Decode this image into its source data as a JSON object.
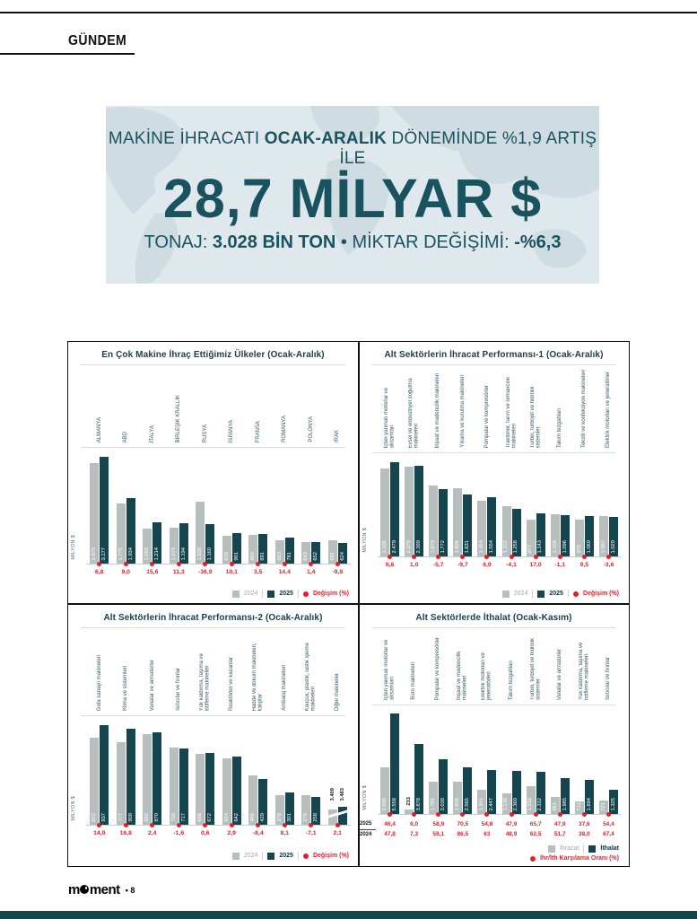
{
  "page": {
    "section_label": "GÜNDEM",
    "footer": {
      "logo_m": "m",
      "logo_rest": "ment",
      "separator": "•",
      "page_number": "8"
    }
  },
  "banner": {
    "intro": {
      "pre": "MAKİNE İHRACATI ",
      "bold": "OCAK-ARALIK",
      "post": " DÖNEMİNDE %1,9 ARTIŞ İLE"
    },
    "headline": "28,7 MİLYAR $",
    "stats": {
      "label1": "TONAJ: ",
      "value1": "3.028 BİN TON",
      "mid": " • MİKTAR DEĞİŞİMİ: ",
      "value2": "-%6,3"
    }
  },
  "colors": {
    "teal_bar": "#15454e",
    "gray_bar": "#b6bebe",
    "red": "#e01f2d",
    "banner_bg": "#dfe8ec",
    "banner_text": "#1a5360",
    "title_text": "#1c3c4c",
    "bottom_strip": "#14454e"
  },
  "chart_data": [
    {
      "type": "bar",
      "title": "En Çok Makine İhraç Ettiğimiz Ülkeler (Ocak-Aralık)",
      "ylabel": "MİLYON $",
      "ymax": 3300,
      "legend": [
        "2024",
        "2025"
      ],
      "change_legend": "Değişim (%)",
      "categories": [
        "ALMANYA",
        "ABD",
        "İTALYA",
        "BİRLEŞİK KRALLIK",
        "RUSYA",
        "İSPANYA",
        "FRANSA",
        "ROMANYA",
        "POLONYA",
        "IRAK"
      ],
      "series": [
        {
          "name": "2024",
          "values": [
            2975,
            1775,
            1050,
            1073,
            1838,
            818,
            860,
            683,
            643,
            691
          ],
          "labels": [
            "2.975",
            "1.775",
            "1.050",
            "1.073",
            "1.838",
            "818",
            "860",
            "683",
            "643",
            "691"
          ]
        },
        {
          "name": "2025",
          "values": [
            3177,
            1934,
            1214,
            1194,
            1160,
            901,
            891,
            781,
            652,
            624
          ],
          "labels": [
            "3.177",
            "1.934",
            "1.214",
            "1.194",
            "1.160",
            "901",
            "891",
            "781",
            "652",
            "624"
          ]
        }
      ],
      "change": [
        "6,8",
        "9,0",
        "15,6",
        "11,3",
        "-36,9",
        "10,1",
        "3,5",
        "14,4",
        "1,4",
        "-9,8"
      ]
    },
    {
      "type": "bar",
      "title": "Alt Sektörlerin İhracat Performansı-1 (Ocak-Aralık)",
      "ylabel": "MİLYON $",
      "ymax": 2600,
      "legend": [
        "2024",
        "2025"
      ],
      "change_legend": "Değişim (%)",
      "categories": [
        "İçten yanmalı motorlar ve aksamları",
        "Evsel ve endüstriyel soğutma makineleri",
        "İnşaat ve madencilik makineleri",
        "Yıkama ve kurutma makineleri",
        "Pompalar ve kompresörler",
        "Traktörler, tarım ve ormancılık makineleri",
        "Türbin, turbojet ve hidrolik sistemler",
        "Takım tezgahları",
        "Tekstil ve konfeksiyon makineleri",
        "Elektrik motorları ve jeneratörler"
      ],
      "series": [
        {
          "name": "2024",
          "values": [
            2326,
            2375,
            1879,
            1806,
            1454,
            1312,
            977,
            1108,
            976,
            1067
          ],
          "labels": [
            "2.326",
            "2.375",
            "1.879",
            "1.806",
            "1.454",
            "1.312",
            "977",
            "1.108",
            "976",
            "1.067"
          ]
        },
        {
          "name": "2025",
          "values": [
            2479,
            2399,
            1772,
            1631,
            1554,
            1258,
            1143,
            1096,
            1069,
            1029
          ],
          "labels": [
            "2.479",
            "2.399",
            "1.772",
            "1.631",
            "1.554",
            "1.258",
            "1.143",
            "1.096",
            "1.069",
            "1.029"
          ]
        }
      ],
      "change": [
        "6,6",
        "1,0",
        "-5,7",
        "-9,7",
        "6,9",
        "-4,1",
        "17,0",
        "-1,1",
        "9,5",
        "-3,6"
      ]
    },
    {
      "type": "bar",
      "title": "Alt Sektörlerin İhracat Performansı-2 (Ocak-Aralık)",
      "ylabel": "MİLYON $",
      "ymax": 980,
      "broken_index": 9,
      "legend": [
        "2024",
        "2025"
      ],
      "change_legend": "Değişim (%)",
      "categories": [
        "Gıda sanayii makineleri",
        "Klima ve sistemleri",
        "Vanalar ve armatürler",
        "Isıtıcılar ve fırınlar",
        "Yük kaldırma, taşıma ve istifleme makineleri",
        "Reaktörler ve kazanlar",
        "Hadde ve döküm makineleri, kalıplar",
        "Ambalaj makineleri",
        "Kauçuk, plastik, lastik işleme makineleri",
        "Diğer makineler"
      ],
      "series": [
        {
          "name": "2024",
          "values": [
            822,
            777,
            850,
            729,
            668,
            624,
            468,
            278,
            278,
            3409
          ],
          "labels": [
            "822",
            "777",
            "850",
            "729",
            "668",
            "624",
            "468",
            "278",
            "278",
            "3.409"
          ]
        },
        {
          "name": "2025",
          "values": [
            937,
            908,
            870,
            717,
            672,
            642,
            429,
            301,
            258,
            3483
          ],
          "labels": [
            "937",
            "908",
            "870",
            "717",
            "672",
            "642",
            "429",
            "301",
            "258",
            "3.483"
          ]
        }
      ],
      "change": [
        "14,0",
        "16,8",
        "2,4",
        "-1,6",
        "0,6",
        "2,9",
        "-8,4",
        "8,1",
        "-7,1",
        "2,1"
      ]
    },
    {
      "type": "bar",
      "title": "Alt Sektörlerde İthalat (Ocak-Kasım)",
      "ylabel": "MİLYON $",
      "ymax": 5750,
      "legend": [
        "İhracat",
        "İthalat"
      ],
      "ratio_legend": "İhr/İth Karşılama Oranı (%)",
      "categories": [
        "İçten yanmalı motorlar ve aksamları",
        "Büro makineleri",
        "Pompalar ve kompresörler",
        "İnşaat ve madencilik makineleri",
        "Elektrik motorları ve jeneratörleri",
        "Takım tezgahları",
        "Türbin, turbojet ve hidrolik sistemler",
        "Vanalar ve armatürler",
        "Yük kaldırma, taşıma ve istifleme makineleri",
        "Isıtıcılar ve fırınlar"
      ],
      "series": [
        {
          "name": "İhracat",
          "values": [
            2580,
            233,
            1785,
            1808,
            1341,
            1130,
            1532,
            951,
            712,
            721
          ],
          "labels": [
            "2.580",
            "233",
            "1.785",
            "1.808",
            "1.341",
            "1.130",
            "1.532",
            "951",
            "712",
            "721"
          ]
        },
        {
          "name": "İthalat",
          "values": [
            5558,
            3878,
            3030,
            2565,
            2447,
            2360,
            2332,
            1985,
            1894,
            1325
          ],
          "labels": [
            "5.558",
            "3.878",
            "3.030",
            "2.565",
            "2.447",
            "2.360",
            "2.332",
            "1.985",
            "1.894",
            "1.325"
          ]
        }
      ],
      "ratio_rows": [
        {
          "label": "2025",
          "values": [
            "46,4",
            "6,0",
            "58,9",
            "70,5",
            "54,8",
            "47,9",
            "65,7",
            "47,9",
            "37,6",
            "54,4"
          ]
        },
        {
          "label": "2024",
          "values": [
            "47,8",
            "7,3",
            "59,1",
            "86,5",
            "63",
            "48,9",
            "62,5",
            "51,7",
            "38,0",
            "67,4"
          ]
        }
      ]
    }
  ]
}
